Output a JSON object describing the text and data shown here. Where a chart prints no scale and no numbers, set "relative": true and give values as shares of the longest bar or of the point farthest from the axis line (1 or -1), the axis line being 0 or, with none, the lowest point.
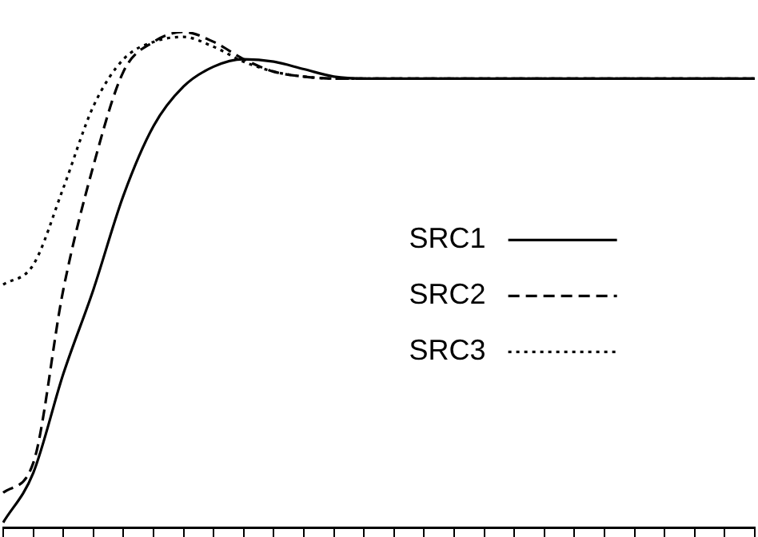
{
  "chart_data": {
    "type": "line",
    "relative": true,
    "legend": "right",
    "tick_labels": false,
    "categories": [
      null,
      null,
      null,
      null,
      null,
      null,
      null,
      null,
      null,
      null,
      null,
      null,
      null,
      null,
      null,
      null,
      null,
      null,
      null,
      null,
      null,
      null,
      null,
      null,
      null,
      null
    ],
    "series": [
      {
        "name": "SRC1",
        "color": "#000000",
        "line_style": "solid",
        "values": [
          0.01,
          0.11,
          0.31,
          0.48,
          0.67,
          0.81,
          0.89,
          0.93,
          0.945,
          0.94,
          0.925,
          0.91,
          0.906,
          0.906,
          0.906,
          0.906,
          0.906,
          0.906,
          0.906,
          0.906,
          0.906,
          0.906,
          0.906,
          0.906,
          0.906,
          0.906
        ]
      },
      {
        "name": "SRC2",
        "color": "#000000",
        "line_style": "dashed",
        "values": [
          0.07,
          0.13,
          0.48,
          0.73,
          0.92,
          0.98,
          1.0,
          0.98,
          0.945,
          0.92,
          0.91,
          0.906,
          0.906,
          0.906,
          0.906,
          0.906,
          0.906,
          0.906,
          0.906,
          0.906,
          0.906,
          0.906,
          0.906,
          0.906,
          0.906,
          0.906
        ]
      },
      {
        "name": "SRC3",
        "color": "#000000",
        "line_style": "dotted",
        "values": [
          0.49,
          0.53,
          0.685,
          0.85,
          0.945,
          0.98,
          0.99,
          0.97,
          0.94,
          0.92,
          0.91,
          0.906,
          0.906,
          0.906,
          0.906,
          0.906,
          0.906,
          0.906,
          0.906,
          0.906,
          0.906,
          0.906,
          0.906,
          0.906,
          0.906,
          0.906
        ]
      }
    ]
  }
}
